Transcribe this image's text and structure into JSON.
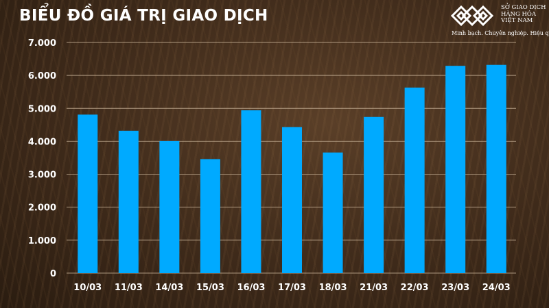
{
  "chart_data": {
    "type": "bar",
    "title": "BIỂU ĐỒ GIÁ TRỊ GIAO DỊCH",
    "xlabel": "",
    "ylabel": "",
    "categories": [
      "10/03",
      "11/03",
      "14/03",
      "15/03",
      "16/03",
      "17/03",
      "18/03",
      "21/03",
      "22/03",
      "23/03",
      "24/03"
    ],
    "values": [
      4810,
      4320,
      4010,
      3460,
      4940,
      4430,
      3660,
      4740,
      5630,
      6290,
      6320
    ],
    "ylim": [
      0,
      7000
    ],
    "yticks": [
      0,
      1000,
      2000,
      3000,
      4000,
      5000,
      6000,
      7000
    ],
    "ytick_labels": [
      "0",
      "1.000",
      "2.000",
      "3.000",
      "4.000",
      "5.000",
      "6.000",
      "7.000"
    ],
    "grid": true,
    "bar_color": "#00AAFF",
    "grid_color": "#c9b49a"
  },
  "logo": {
    "name_lines": [
      "SỞ GIAO DỊCH",
      "HÀNG HÓA",
      "VIỆT NAM"
    ],
    "slogan": "Minh bạch. Chuyên nghiệp. Hiệu quả"
  }
}
